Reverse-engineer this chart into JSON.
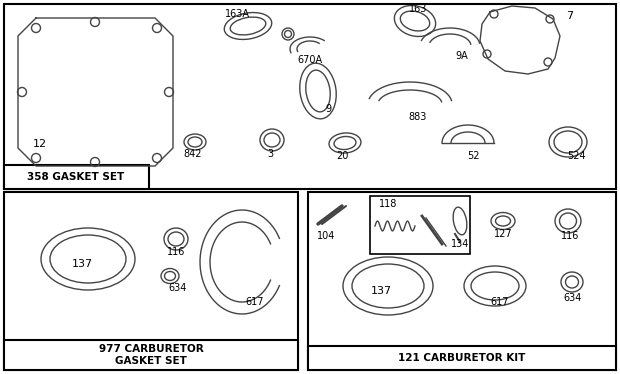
{
  "bg_color": "#ffffff",
  "border_color": "#000000",
  "part_color": "#444444",
  "box1_label": "358 GASKET SET",
  "box2_label": "977 CARBURETOR\nGASKET SET",
  "box3_label": "121 CARBURETOR KIT"
}
